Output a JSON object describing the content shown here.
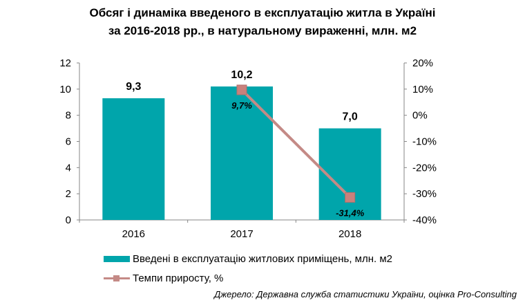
{
  "title_line1": "Обсяг і динаміка введеного в експлуатацію житла в Україні",
  "title_line2": "за 2016-2018 рр., в натуральному вираженні, млн. м2",
  "source": "Джерело: Державна служба статистики України, оцінка Pro-Consulting",
  "colors": {
    "bar": "#00a5ab",
    "line": "#c48a86",
    "marker": "#c9817c"
  },
  "chart_data": {
    "type": "bar",
    "categories": [
      "2016",
      "2017",
      "2018"
    ],
    "series": [
      {
        "name": "Введені в експлуатацію житлових приміщень, млн. м2",
        "type": "bar",
        "axis": "left",
        "values": [
          9.3,
          10.2,
          7.0
        ],
        "labels": [
          "9,3",
          "10,2",
          "7,0"
        ]
      },
      {
        "name": "Темпи приросту, %",
        "type": "line",
        "axis": "right",
        "values": [
          null,
          9.7,
          -31.4
        ],
        "labels": [
          "",
          "9,7%",
          "-31,4%"
        ]
      }
    ],
    "y_left": {
      "lim": [
        0,
        12
      ],
      "ticks": [
        "0",
        "2",
        "4",
        "6",
        "8",
        "10",
        "12"
      ]
    },
    "y_right": {
      "lim": [
        -40,
        20
      ],
      "ticks": [
        "-40%",
        "-30%",
        "-20%",
        "-10%",
        "0%",
        "10%",
        "20%"
      ]
    },
    "grid": false,
    "legend": "bottom"
  }
}
